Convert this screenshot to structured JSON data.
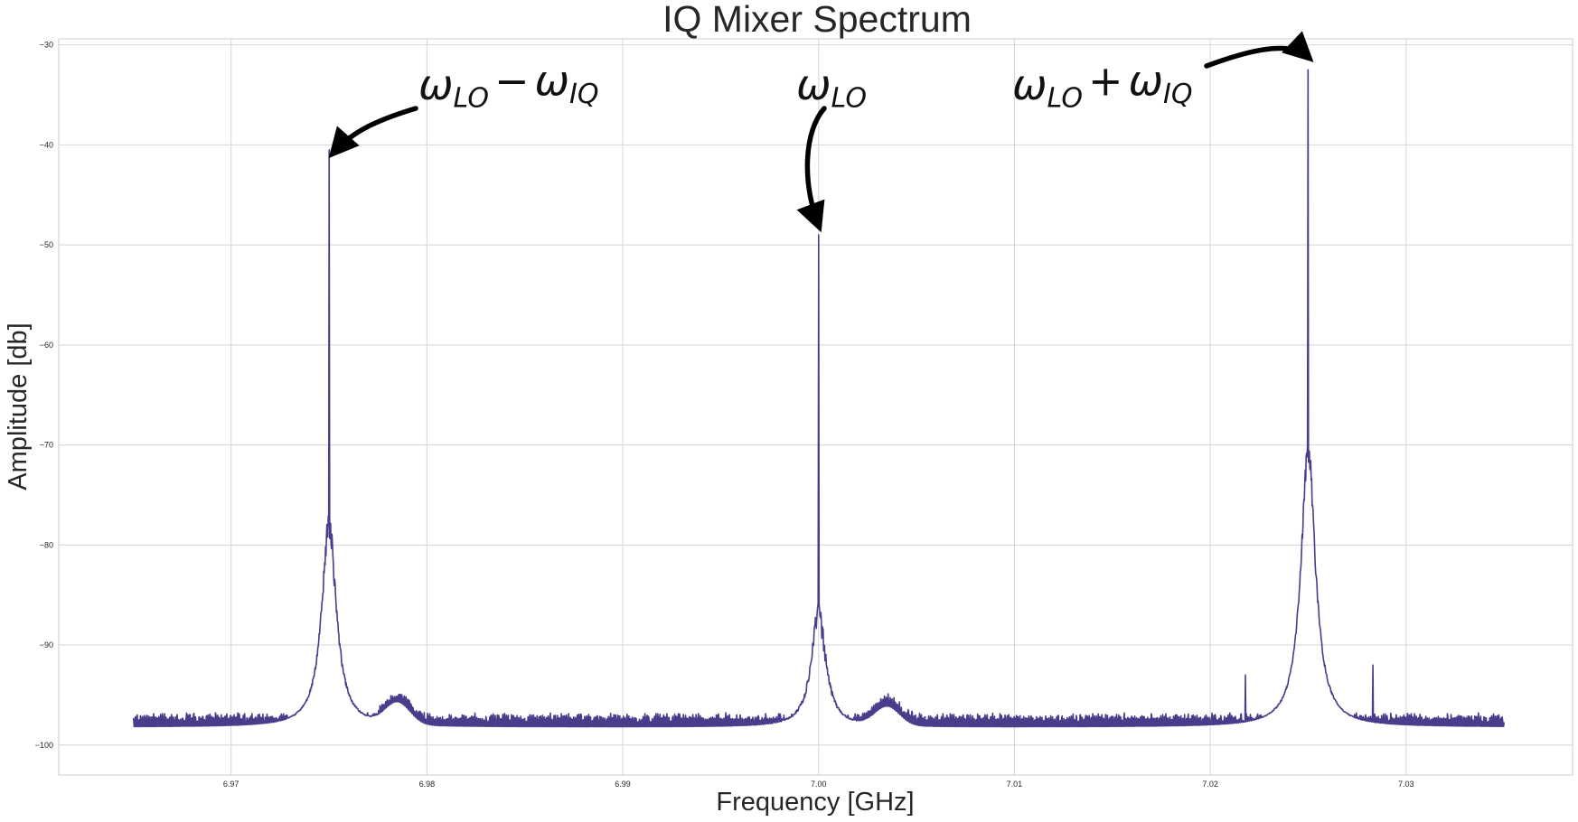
{
  "chart_data": {
    "type": "line",
    "title": "IQ Mixer Spectrum",
    "xlabel": "Frequency [GHz]",
    "ylabel": "Amplitude [db]",
    "xlim": [
      6.9612,
      7.0385
    ],
    "ylim": [
      -103.0,
      -29.4
    ],
    "xticks": [
      6.97,
      6.98,
      6.99,
      7.0,
      7.01,
      7.02,
      7.03
    ],
    "xtick_labels": [
      "6.97",
      "6.98",
      "6.99",
      "7.00",
      "7.01",
      "7.02",
      "7.03"
    ],
    "yticks": [
      -30,
      -40,
      -50,
      -60,
      -70,
      -80,
      -90,
      -100
    ],
    "ytick_labels": [
      "−30",
      "−40",
      "−50",
      "−60",
      "−70",
      "−80",
      "−90",
      "−100"
    ],
    "grid": true,
    "line_color": "#483d8b",
    "x_range": [
      6.965,
      7.035
    ],
    "noise_floor": -98.2,
    "peaks": [
      {
        "x": 6.975,
        "value": -40.5
      },
      {
        "x": 7.0,
        "value": -49.0
      },
      {
        "x": 7.025,
        "value": -32.5
      }
    ],
    "shoulders": [
      {
        "x": 6.975,
        "value": -78.0
      },
      {
        "x": 7.0,
        "value": -87.0
      },
      {
        "x": 7.025,
        "value": -70.5
      }
    ],
    "bumps": [
      {
        "x": 6.9785,
        "value": -96.0
      },
      {
        "x": 7.0035,
        "value": -96.3
      }
    ],
    "spurs": [
      {
        "x": 7.0218,
        "value": -93.0
      },
      {
        "x": 7.0283,
        "value": -92.0
      }
    ],
    "annotations": [
      {
        "base": "ω",
        "sub": "LO",
        "op": "−",
        "base2": "ω",
        "sub2": "IQ",
        "target_x": 6.975,
        "target_y": -40.5
      },
      {
        "base": "ω",
        "sub": "LO",
        "op": "",
        "base2": "",
        "sub2": "",
        "target_x": 7.0,
        "target_y": -48.5
      },
      {
        "base": "ω",
        "sub": "LO",
        "op": "+",
        "base2": "ω",
        "sub2": "IQ",
        "target_x": 7.025,
        "target_y": -31.5
      }
    ]
  }
}
